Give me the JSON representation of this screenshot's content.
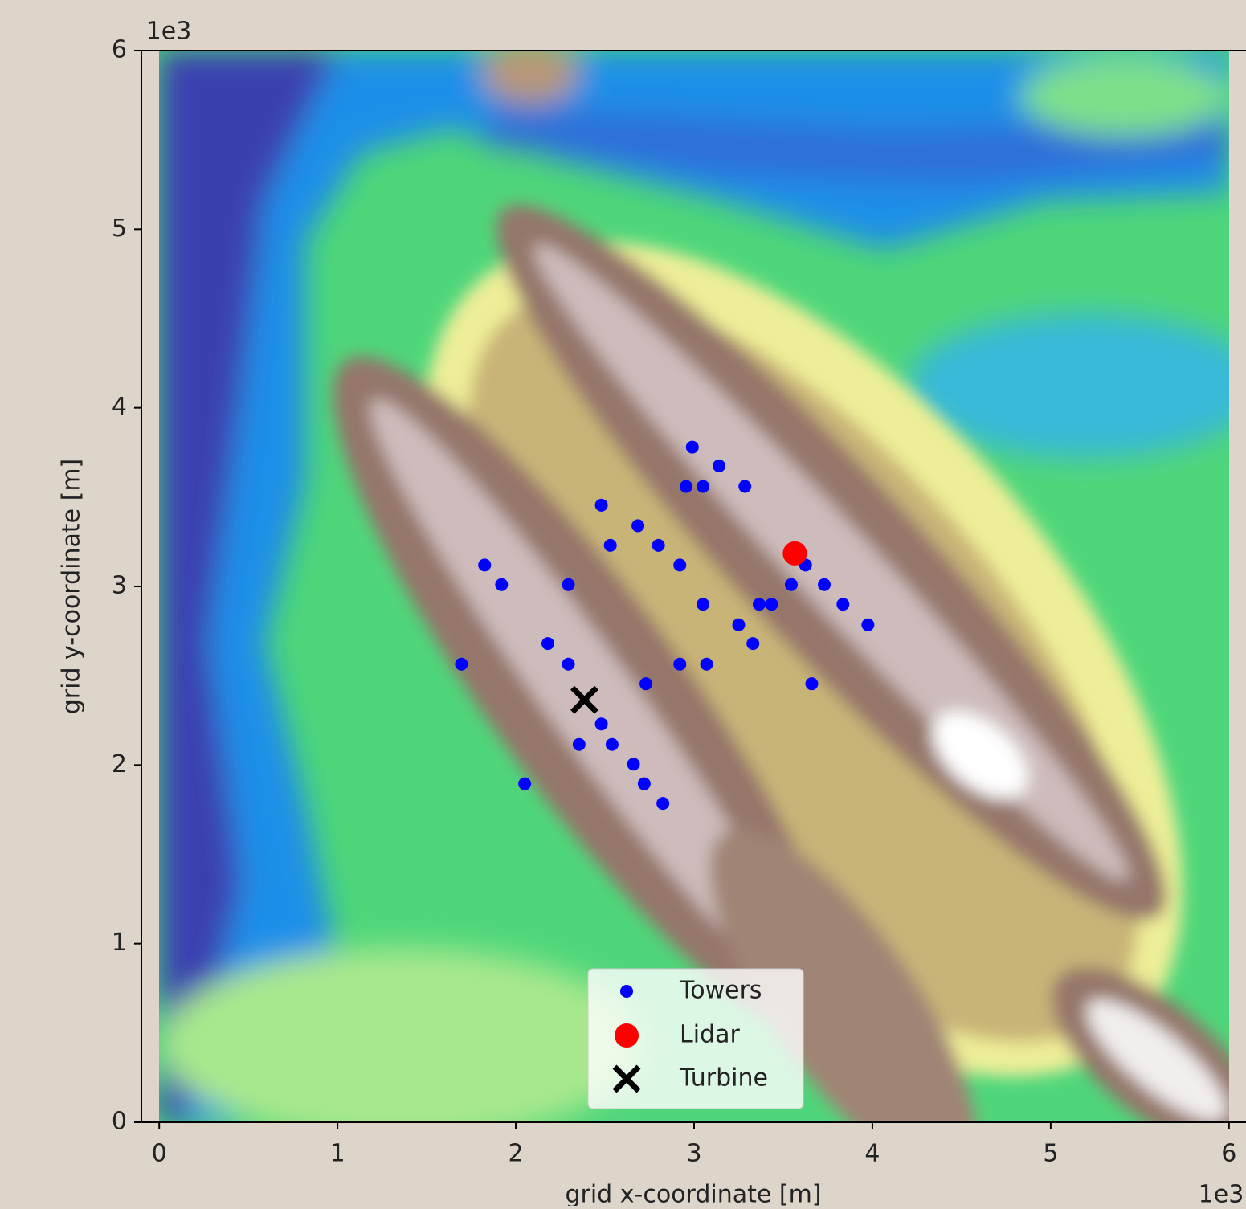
{
  "chart_data": {
    "type": "scatter",
    "xlabel": "grid x-coordinate [m]",
    "ylabel": "grid y-coordinate [m]",
    "x_offset_label": "1e3",
    "y_offset_label": "1e3",
    "xlim": [
      -100,
      6100
    ],
    "ylim": [
      0,
      6000
    ],
    "xticks": [
      {
        "value": 0,
        "label": "0"
      },
      {
        "value": 1000,
        "label": "1"
      },
      {
        "value": 2000,
        "label": "2"
      },
      {
        "value": 3000,
        "label": "3"
      },
      {
        "value": 4000,
        "label": "4"
      },
      {
        "value": 5000,
        "label": "5"
      },
      {
        "value": 6000,
        "label": "6"
      }
    ],
    "yticks": [
      {
        "value": 0,
        "label": "0"
      },
      {
        "value": 1000,
        "label": "1"
      },
      {
        "value": 2000,
        "label": "2"
      },
      {
        "value": 3000,
        "label": "3"
      },
      {
        "value": 4000,
        "label": "4"
      },
      {
        "value": 5000,
        "label": "5"
      },
      {
        "value": 6000,
        "label": "6"
      }
    ],
    "legend": "lower center",
    "series": [
      {
        "name": "Towers",
        "color": "#0000ff",
        "marker": "circle",
        "x": [
          2990,
          3140,
          2955,
          3050,
          3285,
          2480,
          2685,
          2530,
          2800,
          2920,
          1825,
          3625,
          1920,
          2295,
          3545,
          3730,
          3050,
          3365,
          3435,
          3835,
          3250,
          3975,
          2180,
          3330,
          1695,
          2295,
          2920,
          3070,
          2730,
          3660,
          2480,
          2355,
          2540,
          2660,
          2050,
          2720,
          2825
        ],
        "values": [
          3780,
          3675,
          3560,
          3560,
          3560,
          3455,
          3340,
          3230,
          3230,
          3120,
          3120,
          3120,
          3010,
          3010,
          3010,
          3010,
          2900,
          2900,
          2900,
          2900,
          2785,
          2785,
          2680,
          2680,
          2565,
          2565,
          2565,
          2565,
          2455,
          2455,
          2230,
          2115,
          2115,
          2005,
          1895,
          1895,
          1785
        ]
      },
      {
        "name": "Lidar",
        "color": "#ff0000",
        "marker": "circle",
        "x": [
          3565
        ],
        "values": [
          3185
        ]
      },
      {
        "name": "Turbine",
        "color": "#000000",
        "marker": "x",
        "x": [
          2385
        ],
        "values": [
          2365
        ]
      }
    ]
  }
}
